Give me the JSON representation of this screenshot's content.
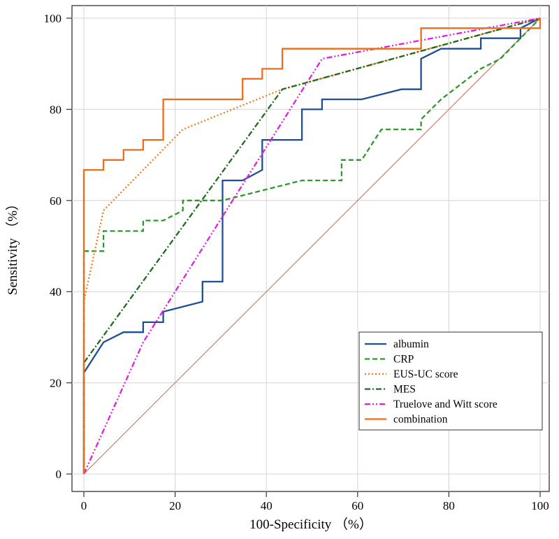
{
  "chart_data": {
    "type": "line",
    "title": "",
    "xlabel": "100-Specificity （%）",
    "ylabel": "Sensitivity （%）",
    "xlim": [
      0,
      100
    ],
    "ylim": [
      0,
      100
    ],
    "xticks": [
      0,
      20,
      40,
      60,
      80,
      100
    ],
    "yticks": [
      0,
      20,
      40,
      60,
      80,
      100
    ],
    "grid": true,
    "legend_position": "bottom-right",
    "reference_line": {
      "name": "diagonal",
      "color": "#cc6655",
      "points": [
        [
          0,
          0
        ],
        [
          100,
          100
        ]
      ]
    },
    "series": [
      {
        "name": "albumin",
        "color": "#1f4e96",
        "style": "solid",
        "points": [
          [
            0,
            0
          ],
          [
            0,
            22.2
          ],
          [
            4.3,
            28.9
          ],
          [
            8.7,
            31.1
          ],
          [
            13,
            31.1
          ],
          [
            13,
            33.3
          ],
          [
            17.4,
            33.3
          ],
          [
            17.4,
            35.6
          ],
          [
            26,
            37.8
          ],
          [
            26,
            42.2
          ],
          [
            30.4,
            42.2
          ],
          [
            30.4,
            64.4
          ],
          [
            34.8,
            64.4
          ],
          [
            39.1,
            66.7
          ],
          [
            39.1,
            73.3
          ],
          [
            47.8,
            73.3
          ],
          [
            47.8,
            80
          ],
          [
            52.2,
            80
          ],
          [
            52.2,
            82.2
          ],
          [
            60.9,
            82.2
          ],
          [
            69.6,
            84.4
          ],
          [
            73.9,
            84.4
          ],
          [
            73.9,
            91.1
          ],
          [
            78.3,
            93.3
          ],
          [
            87,
            93.3
          ],
          [
            87,
            95.6
          ],
          [
            95.7,
            95.6
          ],
          [
            95.7,
            97.8
          ],
          [
            100,
            100
          ]
        ]
      },
      {
        "name": "CRP",
        "color": "#2b9a2b",
        "style": "dashed",
        "points": [
          [
            0,
            0
          ],
          [
            0,
            48.9
          ],
          [
            4.3,
            48.9
          ],
          [
            4.3,
            53.3
          ],
          [
            13,
            53.3
          ],
          [
            13,
            55.6
          ],
          [
            17.4,
            55.6
          ],
          [
            21.7,
            57.8
          ],
          [
            21.7,
            60
          ],
          [
            30.4,
            60
          ],
          [
            47.8,
            64.4
          ],
          [
            56.5,
            64.4
          ],
          [
            56.5,
            68.9
          ],
          [
            60.9,
            68.9
          ],
          [
            65.2,
            75.6
          ],
          [
            73.9,
            75.6
          ],
          [
            73.9,
            77.8
          ],
          [
            78.3,
            82.2
          ],
          [
            87,
            88.9
          ],
          [
            91.3,
            91.1
          ],
          [
            95.7,
            95.6
          ],
          [
            100,
            100
          ]
        ]
      },
      {
        "name": "EUS-UC score",
        "color": "#f07a1e",
        "style": "dotted",
        "points": [
          [
            0,
            0
          ],
          [
            0,
            37.8
          ],
          [
            4.3,
            57.8
          ],
          [
            21.7,
            75.6
          ],
          [
            43.5,
            84.4
          ],
          [
            100,
            100
          ]
        ]
      },
      {
        "name": "MES",
        "color": "#1e6b1e",
        "style": "dashdot",
        "points": [
          [
            0,
            0
          ],
          [
            0,
            24.4
          ],
          [
            43.5,
            84.4
          ],
          [
            100,
            100
          ]
        ]
      },
      {
        "name": "Truelove and Witt score",
        "color": "#e020e0",
        "style": "dashdotdot",
        "points": [
          [
            0,
            0
          ],
          [
            13,
            28.9
          ],
          [
            52.2,
            91.1
          ],
          [
            100,
            100
          ]
        ]
      },
      {
        "name": "combination",
        "color": "#ef6c1a",
        "style": "solid",
        "points": [
          [
            0,
            0
          ],
          [
            0,
            66.7
          ],
          [
            4.3,
            66.7
          ],
          [
            4.3,
            68.9
          ],
          [
            8.7,
            68.9
          ],
          [
            8.7,
            71.1
          ],
          [
            13,
            71.1
          ],
          [
            13,
            73.3
          ],
          [
            17.4,
            73.3
          ],
          [
            17.4,
            82.2
          ],
          [
            34.8,
            82.2
          ],
          [
            34.8,
            86.7
          ],
          [
            39.1,
            86.7
          ],
          [
            39.1,
            88.9
          ],
          [
            43.5,
            88.9
          ],
          [
            43.5,
            93.3
          ],
          [
            73.9,
            93.3
          ],
          [
            73.9,
            97.8
          ],
          [
            100,
            97.8
          ],
          [
            100,
            100
          ]
        ]
      }
    ]
  }
}
